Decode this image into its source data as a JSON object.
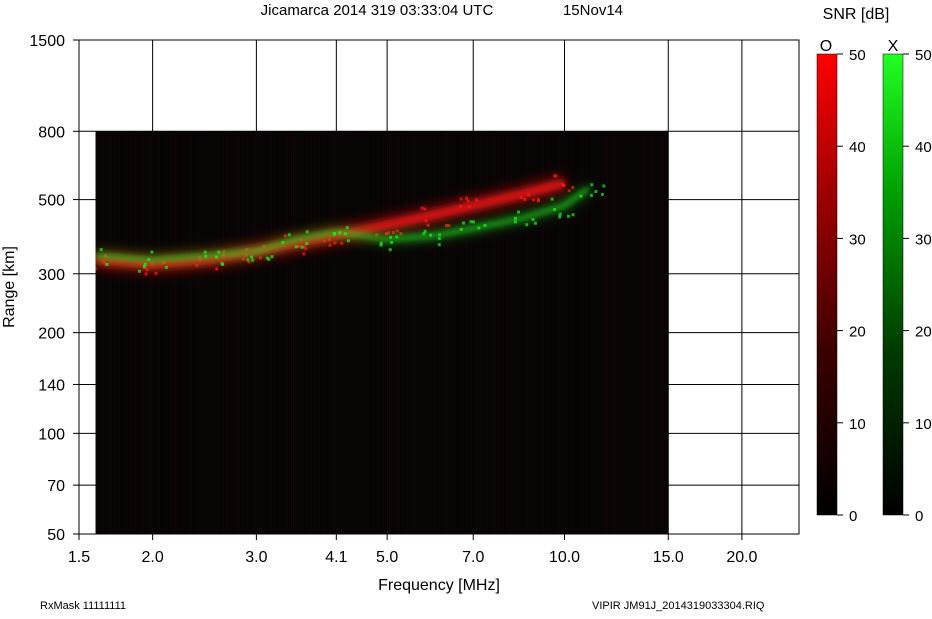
{
  "header": {
    "title": "Jicamarca 2014 319 03:33:04 UTC",
    "date": "15Nov14"
  },
  "footer": {
    "rxmask": "RxMask 11111111",
    "file": "VIPIR  JM91J_2014319033304.RIQ"
  },
  "colorbars": {
    "title": "SNR [dB]",
    "o_label": "O",
    "x_label": "X",
    "ticks": [
      "50",
      "40",
      "30",
      "20",
      "10",
      "0"
    ],
    "range": [
      0,
      50
    ]
  },
  "colors": {
    "o_mode": "#ff1a1a",
    "x_mode": "#22ee22",
    "background": "#050505"
  },
  "chart_data": {
    "type": "heatmap",
    "xlabel": "Frequency [MHz]",
    "ylabel": "Range [km]",
    "xscale": "log",
    "yscale": "log",
    "xlim": [
      1.5,
      25
    ],
    "ylim": [
      50,
      1500
    ],
    "xticks": [
      1.5,
      2.0,
      3.0,
      4.1,
      5.0,
      7.0,
      10.0,
      15.0,
      20.0
    ],
    "xticklabels": [
      "1.5",
      "2.0",
      "3.0",
      "4.1",
      "5.0",
      "7.0",
      "10.0",
      "15.0",
      "20.0"
    ],
    "yticks": [
      50,
      70,
      100,
      140,
      200,
      300,
      500,
      800,
      1500
    ],
    "yticklabels": [
      "50",
      "70",
      "100",
      "140",
      "200",
      "300",
      "500",
      "800",
      "1500"
    ],
    "data_extent": {
      "freq_mhz": [
        1.6,
        15.0
      ],
      "range_km": [
        50,
        800
      ]
    },
    "grid": true,
    "series": [
      {
        "name": "O",
        "trace": [
          [
            1.6,
            330
          ],
          [
            2.0,
            320
          ],
          [
            2.5,
            330
          ],
          [
            3.0,
            350
          ],
          [
            3.5,
            370
          ],
          [
            4.1,
            390
          ],
          [
            5.0,
            420
          ],
          [
            6.0,
            450
          ],
          [
            7.0,
            480
          ],
          [
            8.5,
            520
          ],
          [
            10.0,
            560
          ]
        ]
      },
      {
        "name": "X",
        "trace": [
          [
            1.6,
            340
          ],
          [
            2.0,
            330
          ],
          [
            2.5,
            340
          ],
          [
            3.0,
            350
          ],
          [
            3.5,
            380
          ],
          [
            4.1,
            400
          ],
          [
            5.0,
            380
          ],
          [
            6.0,
            390
          ],
          [
            7.0,
            410
          ],
          [
            8.5,
            440
          ],
          [
            10.0,
            480
          ],
          [
            11.0,
            540
          ]
        ]
      }
    ]
  }
}
